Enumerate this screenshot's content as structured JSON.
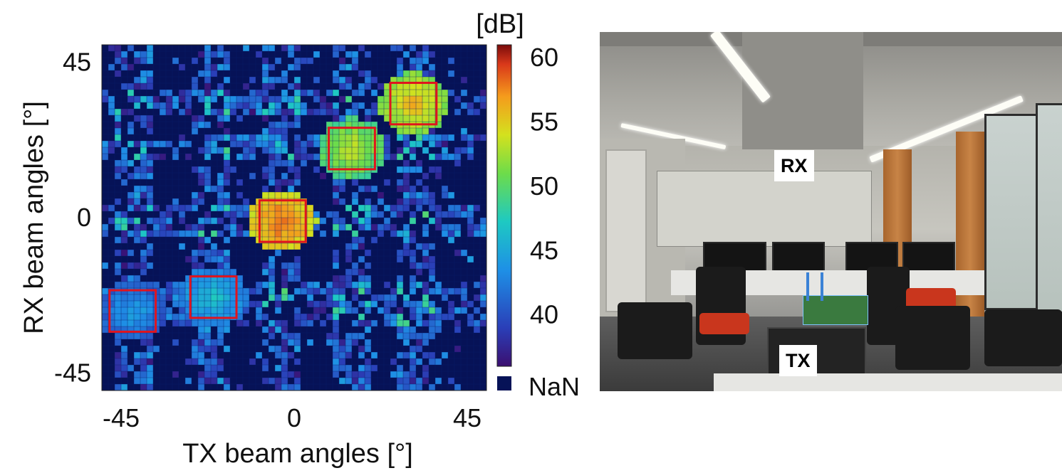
{
  "chart_data": {
    "type": "heatmap",
    "xlabel": "TX beam angles [°]",
    "ylabel": "RX beam angles [°]",
    "xlim": [
      -50,
      50
    ],
    "ylim": [
      -50,
      50
    ],
    "x_ticks": [
      "-45",
      "0",
      "45"
    ],
    "y_ticks": [
      "45",
      "0",
      "-45"
    ],
    "colorbar": {
      "unit": "[dB]",
      "ticks": [
        "60",
        "55",
        "50",
        "45",
        "40"
      ],
      "range": [
        36,
        61
      ],
      "nan_label": "NaN",
      "nan_color": "#061257",
      "colormap": "jet"
    },
    "highlight_boxes_color": "#e0141e",
    "peaks": [
      {
        "tx": -3,
        "rx": -1,
        "db": 59
      },
      {
        "tx": 31,
        "rx": 33,
        "db": 56
      },
      {
        "tx": 15,
        "rx": 20,
        "db": 54
      },
      {
        "tx": -21,
        "rx": -23,
        "db": 47
      },
      {
        "tx": -42,
        "rx": -27,
        "db": 45
      }
    ]
  },
  "photo": {
    "labels": {
      "rx": "RX",
      "tx": "TX"
    }
  }
}
